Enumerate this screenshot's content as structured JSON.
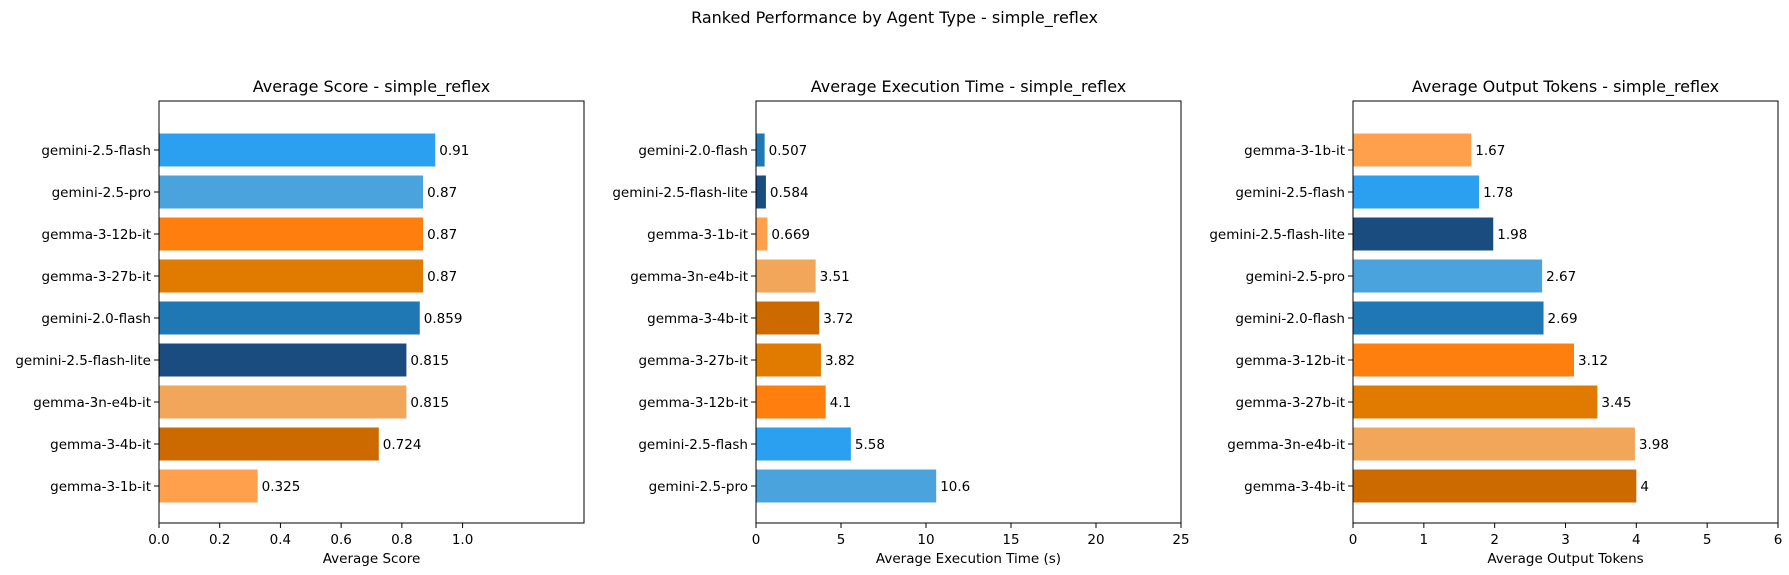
{
  "figure": {
    "suptitle": "Ranked Performance by Agent Type - simple_reflex"
  },
  "colors": {
    "gemini-2.5-flash": "#2b9ff0",
    "gemini-2.5-pro": "#4ba3de",
    "gemma-3-12b-it": "#ff7f0e",
    "gemma-3-27b-it": "#e07b00",
    "gemini-2.0-flash": "#1f77b4",
    "gemini-2.5-flash-lite": "#1a4c80",
    "gemma-3n-e4b-it": "#f2a65a",
    "gemma-3-4b-it": "#cc6a00",
    "gemma-3-1b-it": "#ffa04d"
  },
  "chart_data": [
    {
      "type": "bar",
      "orientation": "horizontal",
      "title": "Average Score - simple_reflex",
      "xlabel": "Average Score",
      "ylabel": "",
      "categories": [
        "gemini-2.5-flash",
        "gemini-2.5-pro",
        "gemma-3-12b-it",
        "gemma-3-27b-it",
        "gemini-2.0-flash",
        "gemini-2.5-flash-lite",
        "gemma-3n-e4b-it",
        "gemma-3-4b-it",
        "gemma-3-1b-it"
      ],
      "values": [
        0.91,
        0.87,
        0.87,
        0.87,
        0.859,
        0.815,
        0.815,
        0.724,
        0.325
      ],
      "value_labels": [
        "0.91",
        "0.87",
        "0.87",
        "0.87",
        "0.859",
        "0.815",
        "0.815",
        "0.724",
        "0.325"
      ],
      "xlim": [
        0,
        1.4
      ],
      "xticks": [
        0,
        0.2,
        0.4,
        0.6,
        0.8,
        1.0
      ],
      "xtick_labels": [
        "0.0",
        "0.2",
        "0.4",
        "0.6",
        "0.8",
        "1.0"
      ],
      "grid": false
    },
    {
      "type": "bar",
      "orientation": "horizontal",
      "title": "Average Execution Time - simple_reflex",
      "xlabel": "Average Execution Time (s)",
      "ylabel": "",
      "categories": [
        "gemini-2.0-flash",
        "gemini-2.5-flash-lite",
        "gemma-3-1b-it",
        "gemma-3n-e4b-it",
        "gemma-3-4b-it",
        "gemma-3-27b-it",
        "gemma-3-12b-it",
        "gemini-2.5-flash",
        "gemini-2.5-pro"
      ],
      "values": [
        0.507,
        0.584,
        0.669,
        3.51,
        3.72,
        3.82,
        4.1,
        5.58,
        10.6
      ],
      "value_labels": [
        "0.507",
        "0.584",
        "0.669",
        "3.51",
        "3.72",
        "3.82",
        "4.1",
        "5.58",
        "10.6"
      ],
      "xlim": [
        0,
        25
      ],
      "xticks": [
        0,
        5,
        10,
        15,
        20,
        25
      ],
      "xtick_labels": [
        "0",
        "5",
        "10",
        "15",
        "20",
        "25"
      ],
      "grid": false
    },
    {
      "type": "bar",
      "orientation": "horizontal",
      "title": "Average Output Tokens - simple_reflex",
      "xlabel": "Average Output Tokens",
      "ylabel": "",
      "categories": [
        "gemma-3-1b-it",
        "gemini-2.5-flash",
        "gemini-2.5-flash-lite",
        "gemini-2.5-pro",
        "gemini-2.0-flash",
        "gemma-3-12b-it",
        "gemma-3-27b-it",
        "gemma-3n-e4b-it",
        "gemma-3-4b-it"
      ],
      "values": [
        1.67,
        1.78,
        1.98,
        2.67,
        2.69,
        3.12,
        3.45,
        3.98,
        4.0
      ],
      "value_labels": [
        "1.67",
        "1.78",
        "1.98",
        "2.67",
        "2.69",
        "3.12",
        "3.45",
        "3.98",
        "4"
      ],
      "xlim": [
        0,
        6
      ],
      "xticks": [
        0,
        1,
        2,
        3,
        4,
        5,
        6
      ],
      "xtick_labels": [
        "0",
        "1",
        "2",
        "3",
        "4",
        "5",
        "6"
      ],
      "grid": false
    }
  ]
}
